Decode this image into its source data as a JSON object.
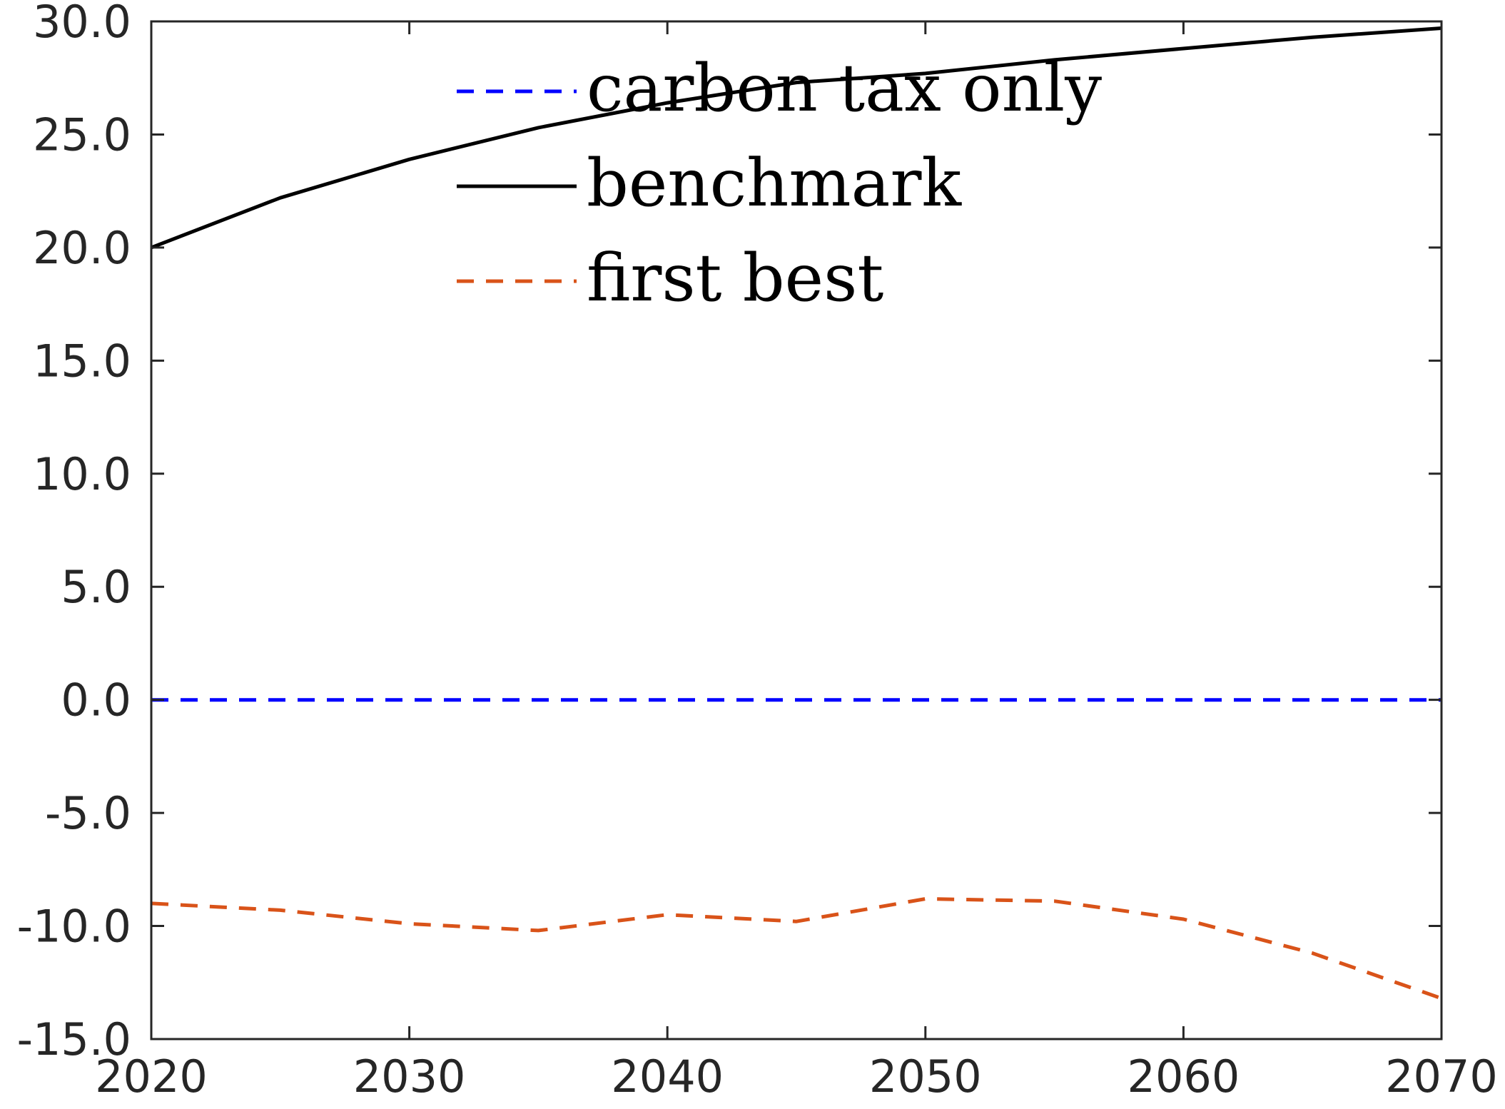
{
  "chart_data": {
    "type": "line",
    "title": "",
    "xlabel": "",
    "ylabel": "",
    "xlim": [
      2020,
      2070
    ],
    "ylim": [
      -15,
      30
    ],
    "x_ticks": [
      2020,
      2030,
      2040,
      2050,
      2060,
      2070
    ],
    "x_tick_labels": [
      "2020",
      "2030",
      "2040",
      "2050",
      "2060",
      "2070"
    ],
    "y_ticks": [
      30,
      25,
      20,
      15,
      10,
      5,
      0,
      -5,
      -10,
      -15
    ],
    "y_tick_labels": [
      "30.0",
      "25.0",
      "20.0",
      "15.0",
      "10.0",
      "5.0",
      "0.0",
      "-5.0",
      "-10.0",
      "-15.0"
    ],
    "grid": false,
    "legend_position": "top-center",
    "series": [
      {
        "name": "carbon tax only",
        "color": "#0000ff",
        "line_style": "dashed",
        "x": [
          2020,
          2025,
          2030,
          2035,
          2040,
          2045,
          2050,
          2055,
          2060,
          2065,
          2070
        ],
        "y": [
          0,
          0,
          0,
          0,
          0,
          0,
          0,
          0,
          0,
          0,
          0
        ]
      },
      {
        "name": "benchmark",
        "color": "#000000",
        "line_style": "solid",
        "x": [
          2020,
          2025,
          2030,
          2035,
          2040,
          2045,
          2050,
          2055,
          2060,
          2065,
          2070
        ],
        "y": [
          20.0,
          22.2,
          23.9,
          25.3,
          26.4,
          27.3,
          27.7,
          28.3,
          28.8,
          29.3,
          29.7
        ]
      },
      {
        "name": "first best",
        "color": "#d95319",
        "line_style": "dashed",
        "x": [
          2020,
          2025,
          2030,
          2035,
          2040,
          2045,
          2050,
          2055,
          2060,
          2065,
          2070
        ],
        "y": [
          -9.0,
          -9.3,
          -9.9,
          -10.2,
          -9.5,
          -9.8,
          -8.8,
          -8.9,
          -9.7,
          -11.2,
          -13.2
        ]
      }
    ]
  }
}
